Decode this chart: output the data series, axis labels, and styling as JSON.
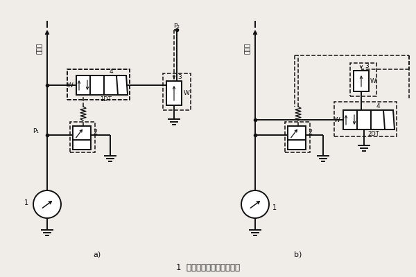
{
  "title": "1  双溢流阀式二级调压回路",
  "label_a": "a)",
  "label_b": "b)",
  "bg_color": "#f0ede8",
  "line_color": "#111111",
  "font_color": "#111111",
  "lw": 1.4,
  "dlw": 1.1
}
